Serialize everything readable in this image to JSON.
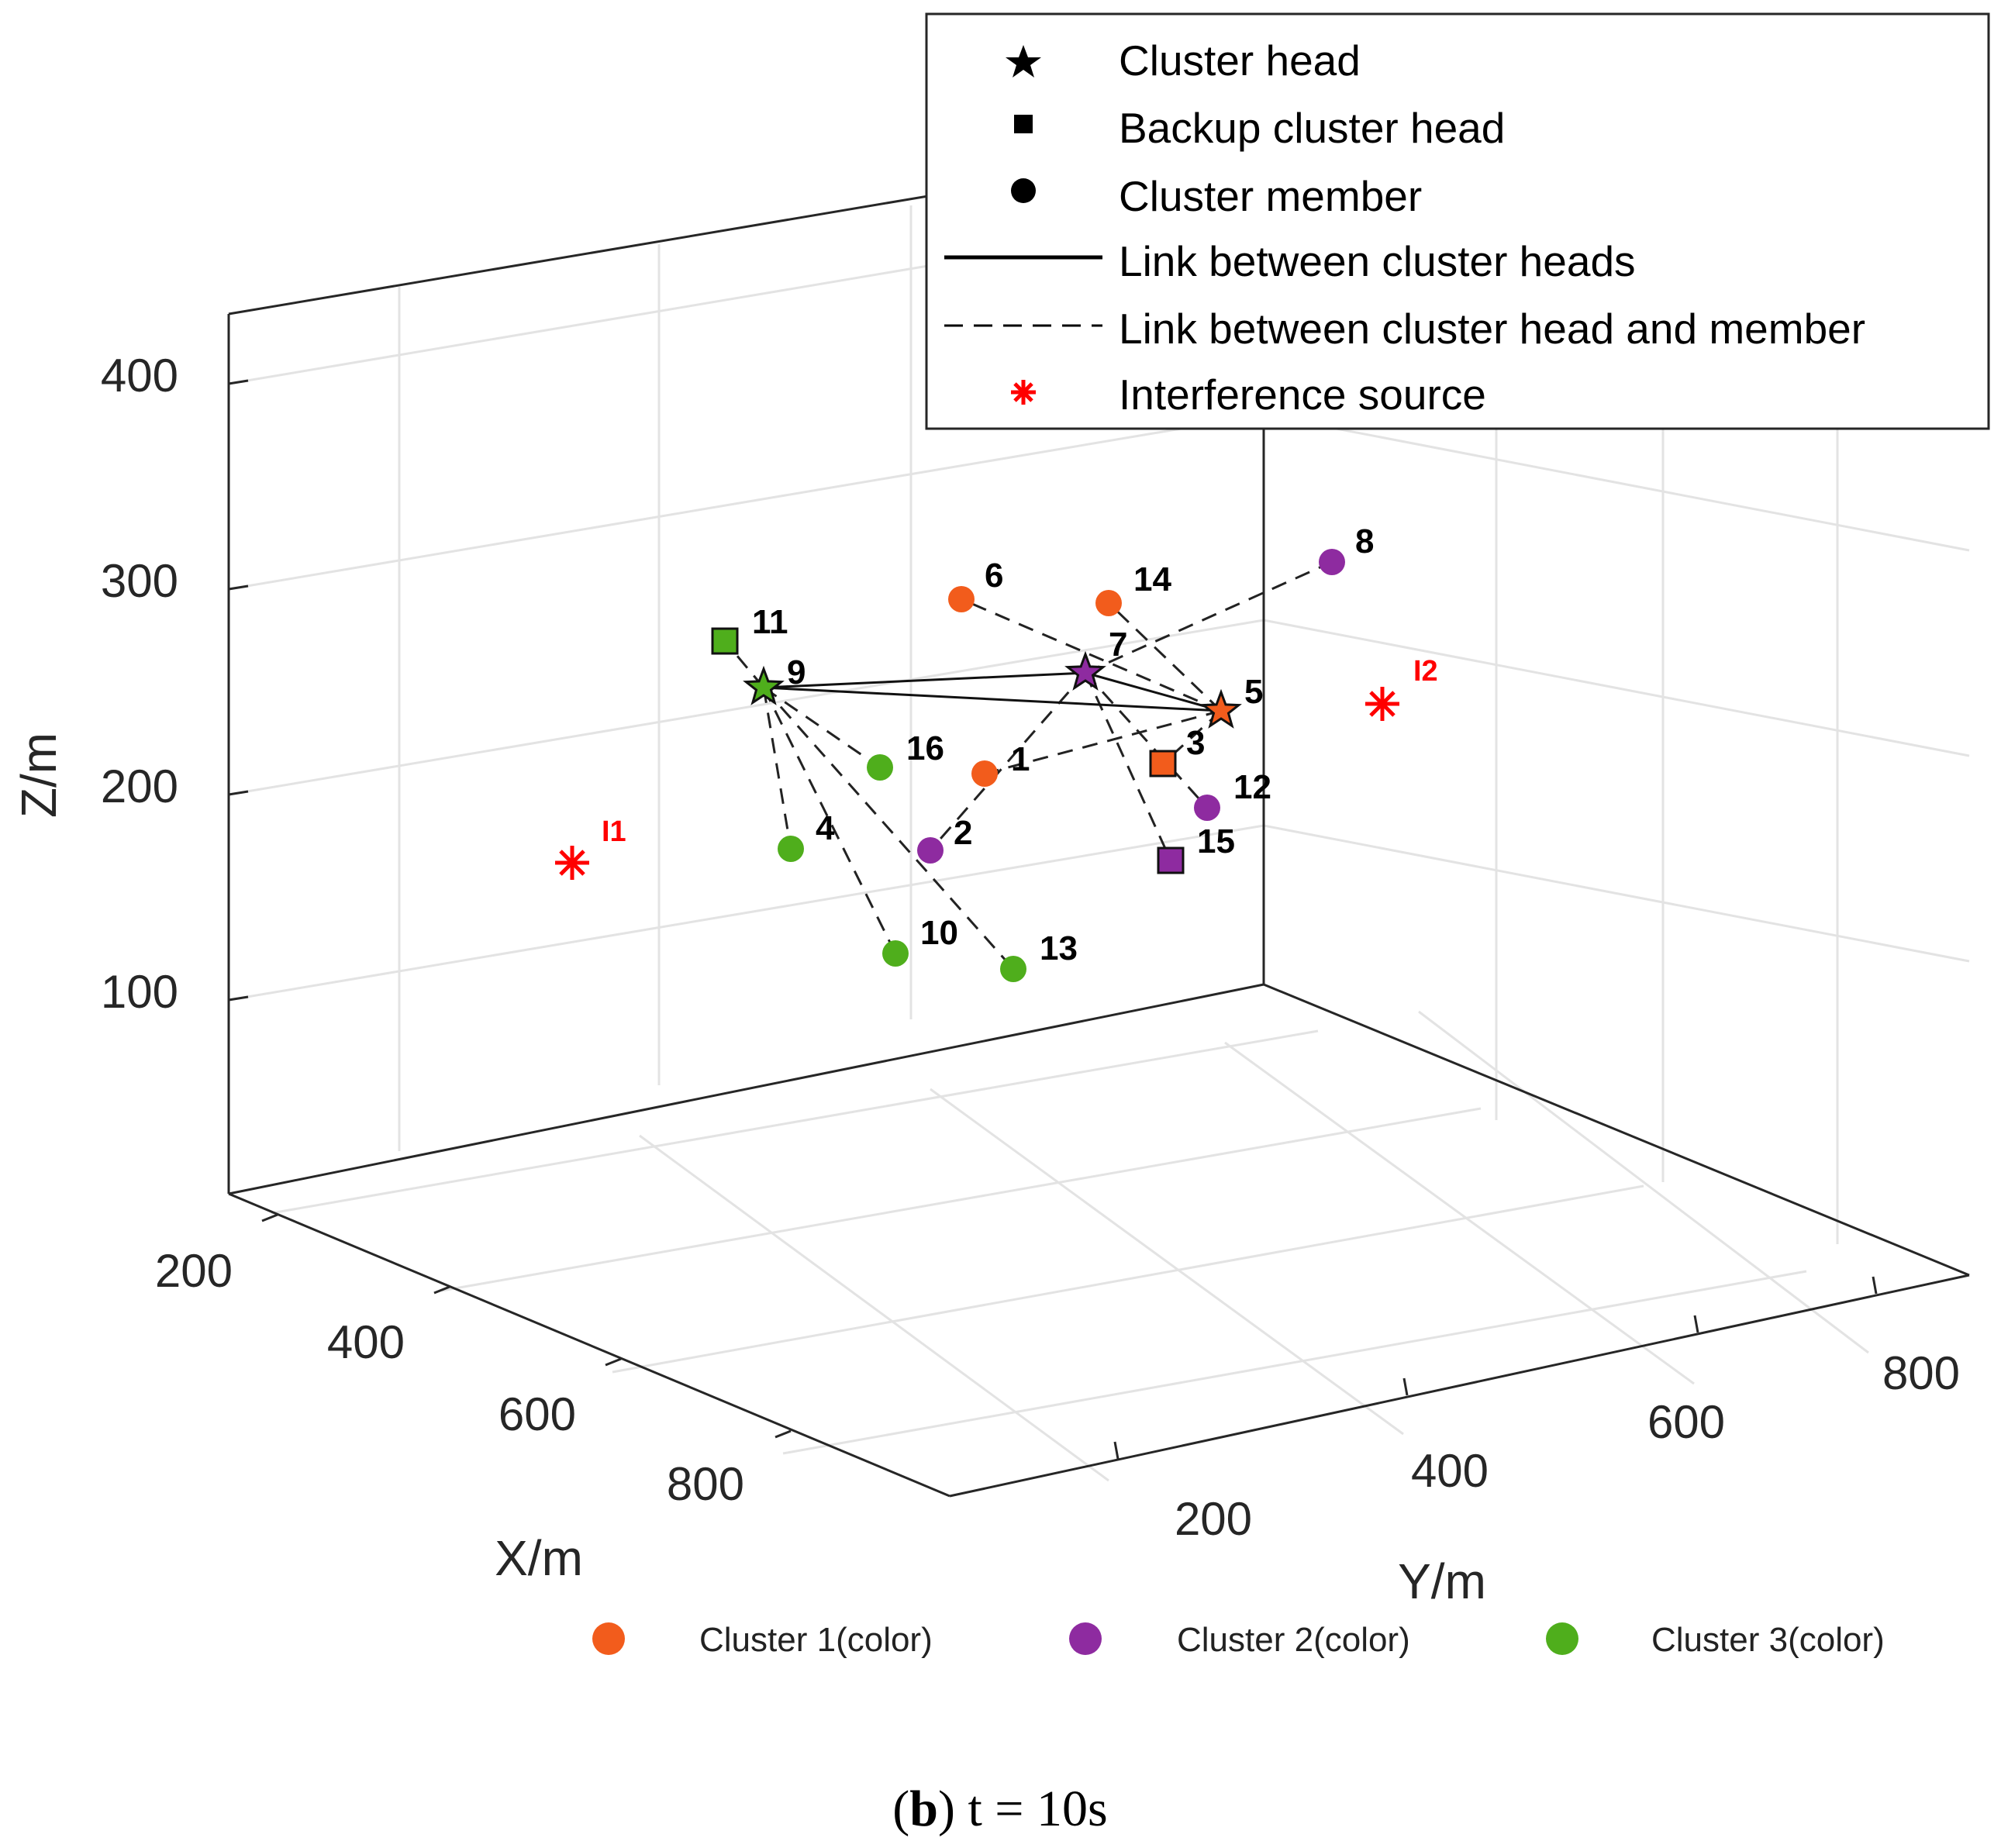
{
  "chart_data": {
    "type": "scatter",
    "title": "",
    "xlabel": "X/m",
    "ylabel": "Y/m",
    "zlabel": "Z/m",
    "xticks": [
      "200",
      "400",
      "600",
      "800"
    ],
    "yticks": [
      "200",
      "400",
      "600",
      "800"
    ],
    "zticks": [
      "100",
      "200",
      "300",
      "400"
    ],
    "grid": true,
    "legend": {
      "placement": "top-right",
      "entries": [
        {
          "label": "Cluster head",
          "symbol": "star"
        },
        {
          "label": "Backup cluster head",
          "symbol": "square"
        },
        {
          "label": "Cluster member",
          "symbol": "circle"
        },
        {
          "label": "Link between cluster heads",
          "symbol": "solid-line"
        },
        {
          "label": "Link between cluster head and member",
          "symbol": "dashed-line"
        },
        {
          "label": "Interference source",
          "symbol": "asterisk"
        }
      ]
    },
    "cluster_legend": [
      {
        "label": "Cluster 1(color)",
        "color": "#f25c1c"
      },
      {
        "label": "Cluster 2(color)",
        "color": "#8e2ba0"
      },
      {
        "label": "Cluster 3(color)",
        "color": "#4fae1c"
      }
    ],
    "nodes": [
      {
        "id": "1",
        "cluster": 1,
        "role": "member"
      },
      {
        "id": "2",
        "cluster": 2,
        "role": "member"
      },
      {
        "id": "3",
        "cluster": 1,
        "role": "backup"
      },
      {
        "id": "4",
        "cluster": 3,
        "role": "member"
      },
      {
        "id": "5",
        "cluster": 1,
        "role": "head"
      },
      {
        "id": "6",
        "cluster": 1,
        "role": "member"
      },
      {
        "id": "7",
        "cluster": 2,
        "role": "head"
      },
      {
        "id": "8",
        "cluster": 2,
        "role": "member"
      },
      {
        "id": "9",
        "cluster": 3,
        "role": "head"
      },
      {
        "id": "10",
        "cluster": 3,
        "role": "member"
      },
      {
        "id": "11",
        "cluster": 3,
        "role": "backup"
      },
      {
        "id": "12",
        "cluster": 2,
        "role": "member"
      },
      {
        "id": "13",
        "cluster": 3,
        "role": "member"
      },
      {
        "id": "14",
        "cluster": 1,
        "role": "member"
      },
      {
        "id": "15",
        "cluster": 2,
        "role": "backup"
      },
      {
        "id": "16",
        "cluster": 3,
        "role": "member"
      }
    ],
    "head_links": [
      [
        "9",
        "7"
      ],
      [
        "9",
        "5"
      ],
      [
        "7",
        "5"
      ]
    ],
    "member_links": [
      [
        "9",
        "11"
      ],
      [
        "9",
        "16"
      ],
      [
        "9",
        "4"
      ],
      [
        "9",
        "10"
      ],
      [
        "9",
        "13"
      ],
      [
        "7",
        "2"
      ],
      [
        "7",
        "8"
      ],
      [
        "7",
        "12"
      ],
      [
        "7",
        "15"
      ],
      [
        "5",
        "1"
      ],
      [
        "5",
        "3"
      ],
      [
        "5",
        "6"
      ],
      [
        "5",
        "14"
      ]
    ],
    "interference": [
      {
        "id": "I1"
      },
      {
        "id": "I2"
      }
    ]
  },
  "caption": {
    "letter": "b",
    "text": "t = 10s"
  }
}
